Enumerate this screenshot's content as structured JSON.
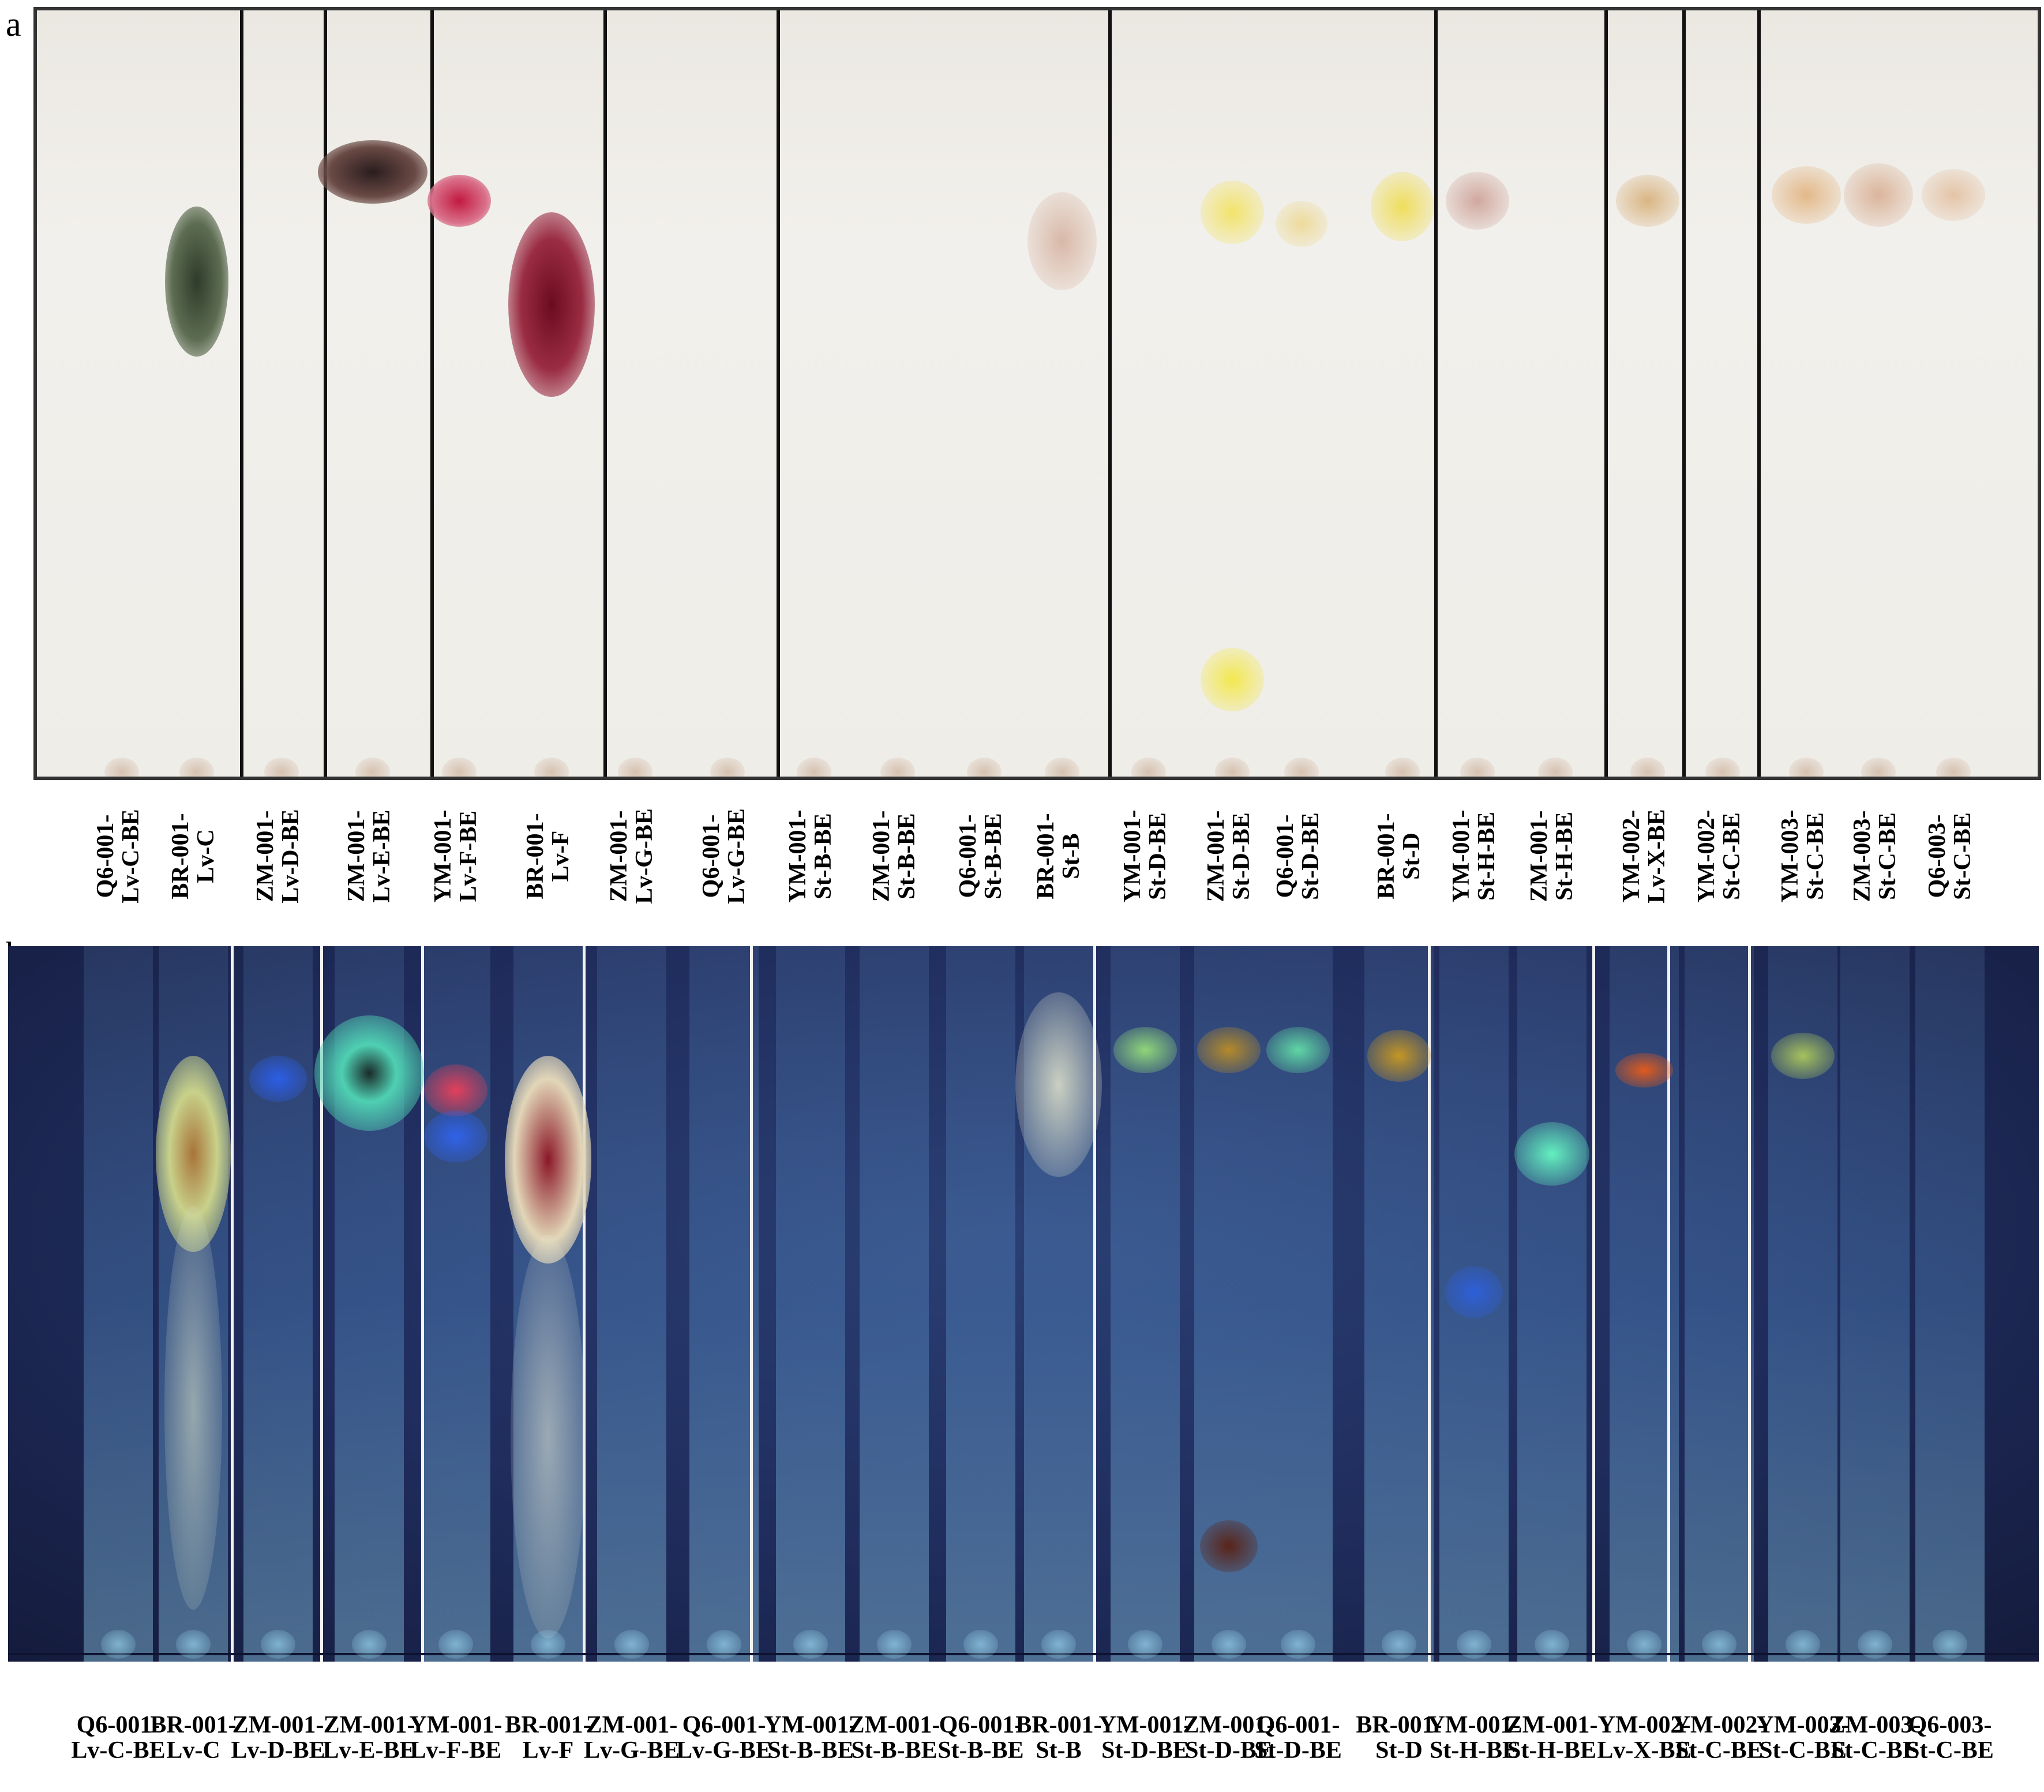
{
  "panels": [
    {
      "letter": "a",
      "style": "visible light"
    },
    {
      "letter": "b",
      "style": "UV fluorescence"
    }
  ],
  "lanes": [
    {
      "line1": "Q6-001-",
      "line2": "Lv-C-BE"
    },
    {
      "line1": "BR-001-",
      "line2": "Lv-C"
    },
    {
      "line1": "ZM-001-",
      "line2": "Lv-D-BE"
    },
    {
      "line1": "ZM-001-",
      "line2": "Lv-E-BE"
    },
    {
      "line1": "YM-001-",
      "line2": "Lv-F-BE"
    },
    {
      "line1": "BR-001-",
      "line2": "Lv-F"
    },
    {
      "line1": "ZM-001-",
      "line2": "Lv-G-BE"
    },
    {
      "line1": "Q6-001-",
      "line2": "Lv-G-BE"
    },
    {
      "line1": "YM-001-",
      "line2": "St-B-BE"
    },
    {
      "line1": "ZM-001-",
      "line2": "St-B-BE"
    },
    {
      "line1": "Q6-001-",
      "line2": "St-B-BE"
    },
    {
      "line1": "BR-001-",
      "line2": "St-B"
    },
    {
      "line1": "YM-001-",
      "line2": "St-D-BE"
    },
    {
      "line1": "ZM-001-",
      "line2": "St-D-BE"
    },
    {
      "line1": "Q6-001-",
      "line2": "St-D-BE"
    },
    {
      "line1": "BR-001-",
      "line2": "St-D"
    },
    {
      "line1": "YM-001-",
      "line2": "St-H-BE"
    },
    {
      "line1": "ZM-001-",
      "line2": "St-H-BE"
    },
    {
      "line1": "YM-002-",
      "line2": "Lv-X-BE"
    },
    {
      "line1": "YM-002-",
      "line2": "St-C-BE"
    },
    {
      "line1": "YM-003-",
      "line2": "St-C-BE"
    },
    {
      "line1": "ZM-003-",
      "line2": "St-C-BE"
    },
    {
      "line1": "Q6-003-",
      "line2": "St-C-BE"
    }
  ],
  "colors": {
    "plate_a_background": "#efede8",
    "plate_b_background": "#1f2c5c",
    "divider_a": "#111111",
    "divider_b": "#f2f2f2"
  }
}
